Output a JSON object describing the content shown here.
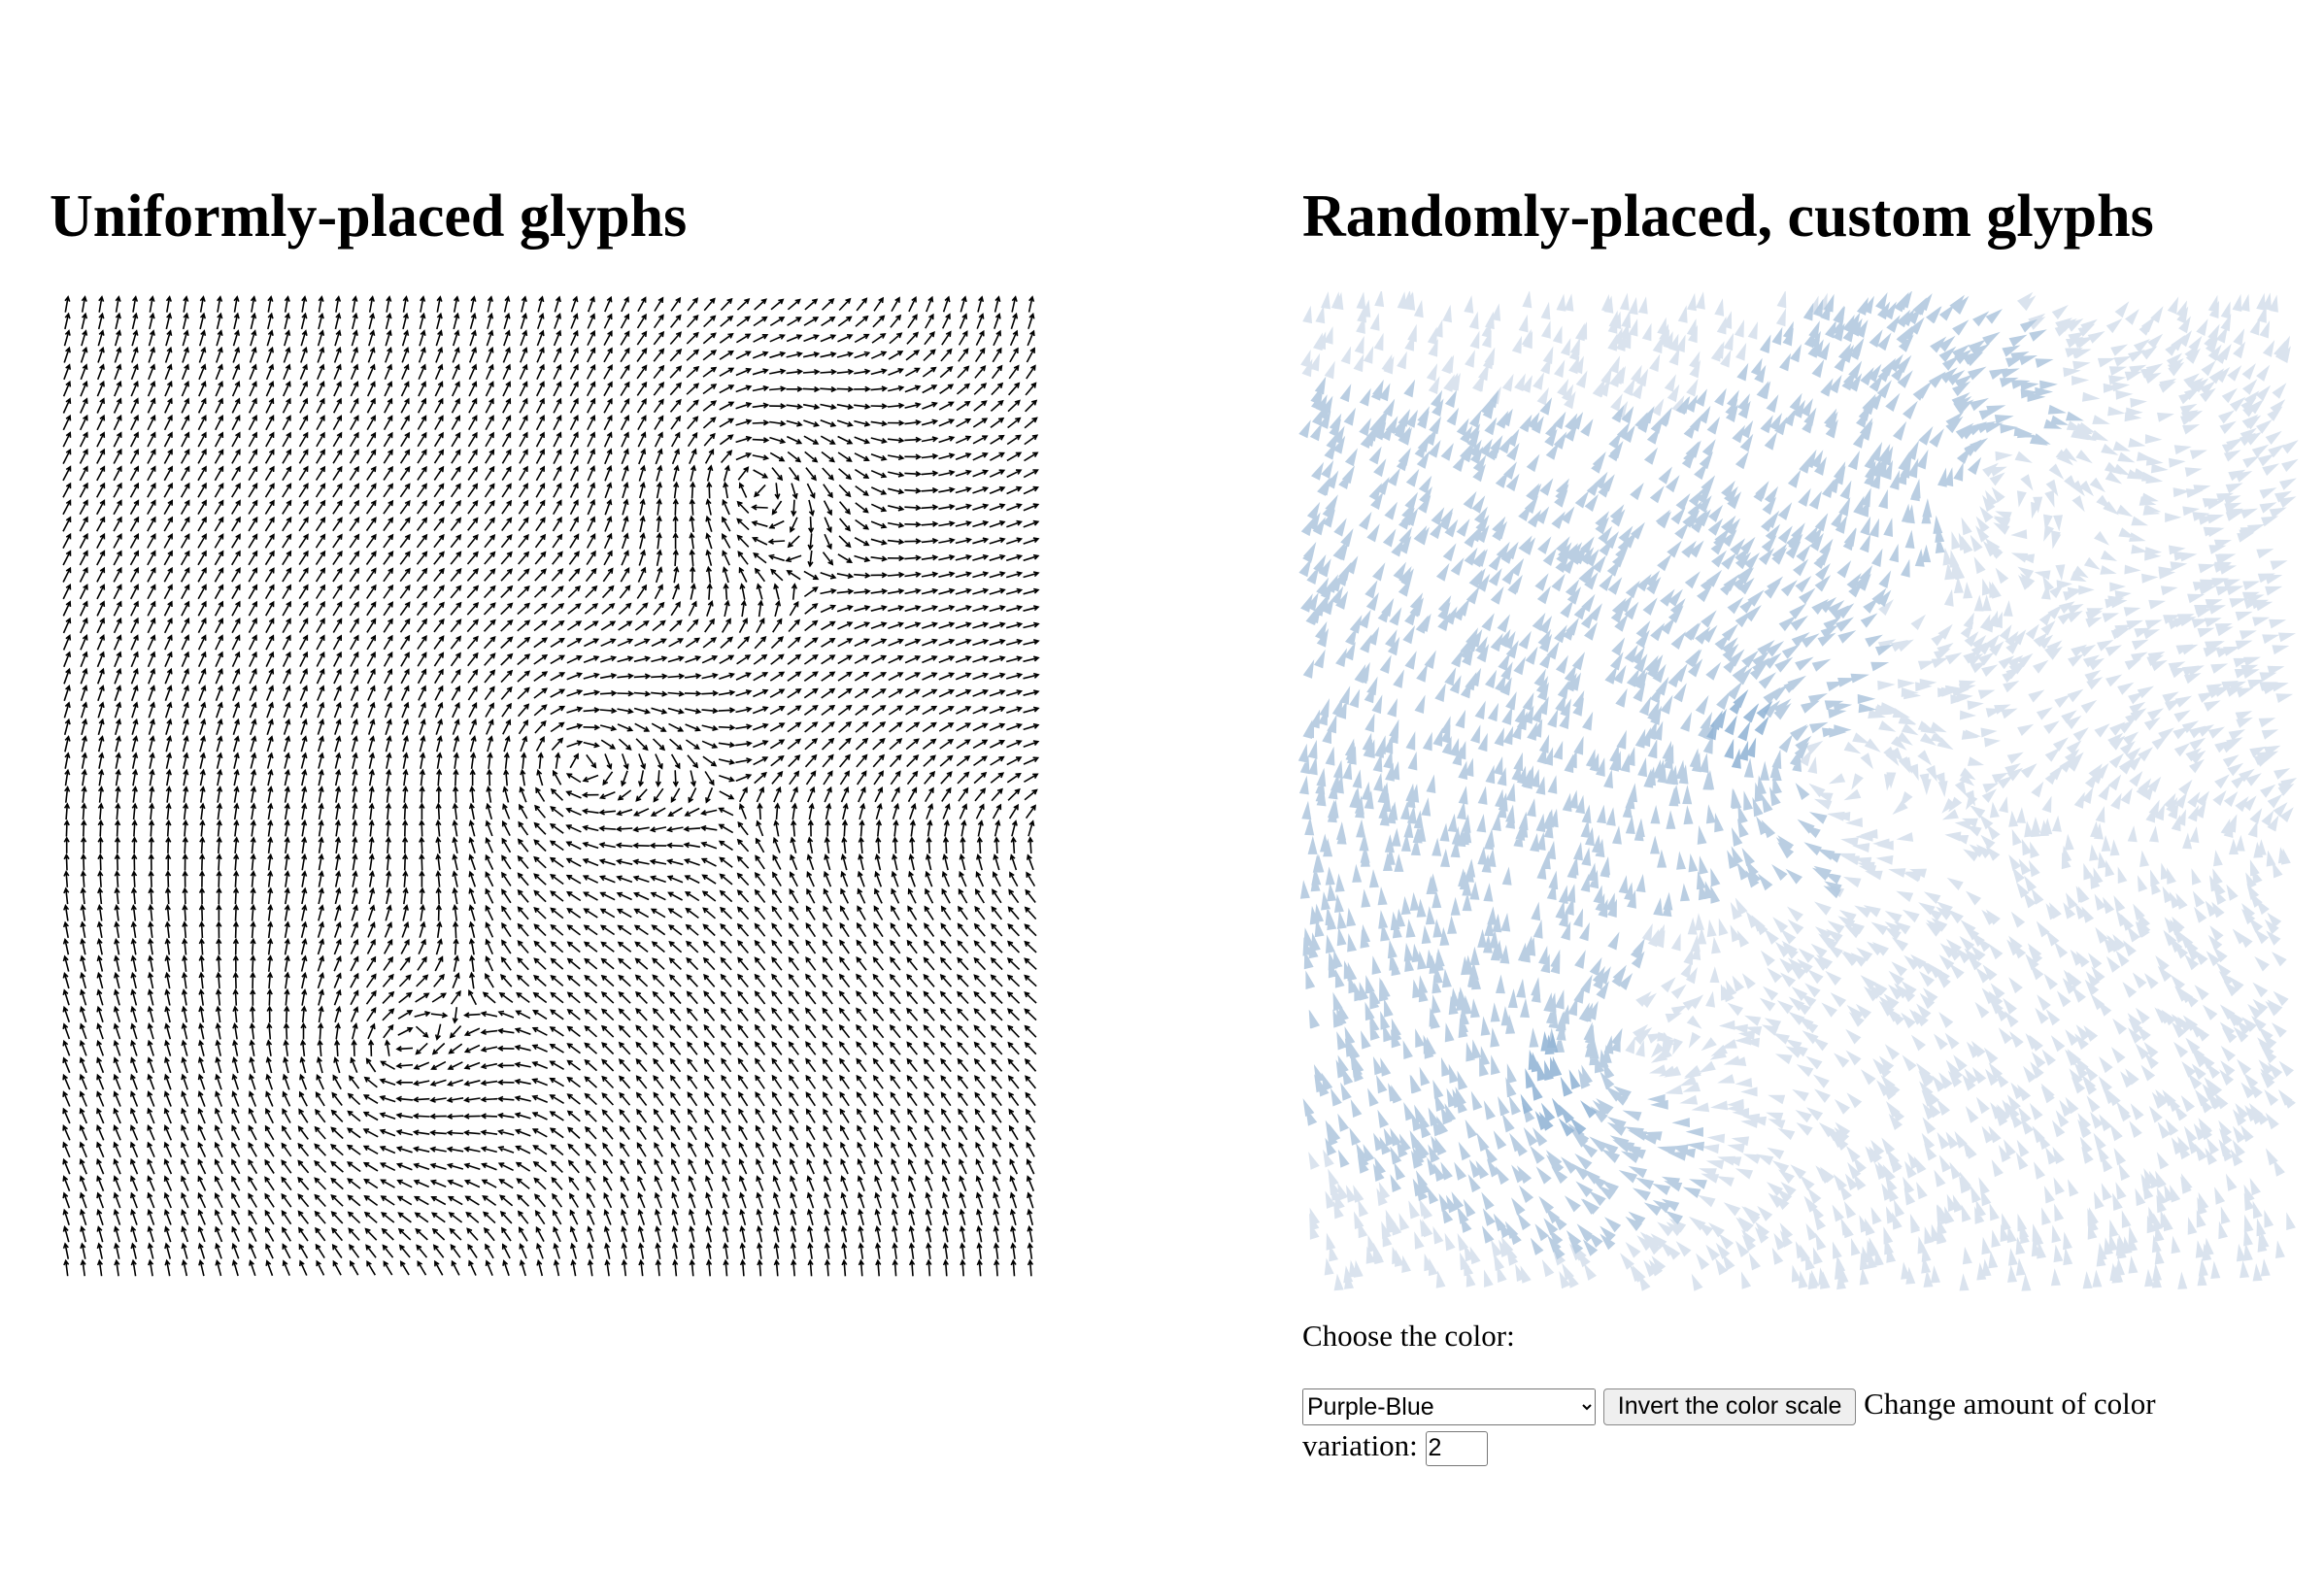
{
  "headings": [
    "Uniformly-placed glyphs",
    "Randomly-placed, custom glyphs"
  ],
  "controls": {
    "label": "Choose the color:",
    "select": {
      "options": [
        "Purple-Blue"
      ]
    },
    "button": "Invert the color scale",
    "variation_label": "Change amount of color variation:",
    "variation_value": "2"
  }
}
